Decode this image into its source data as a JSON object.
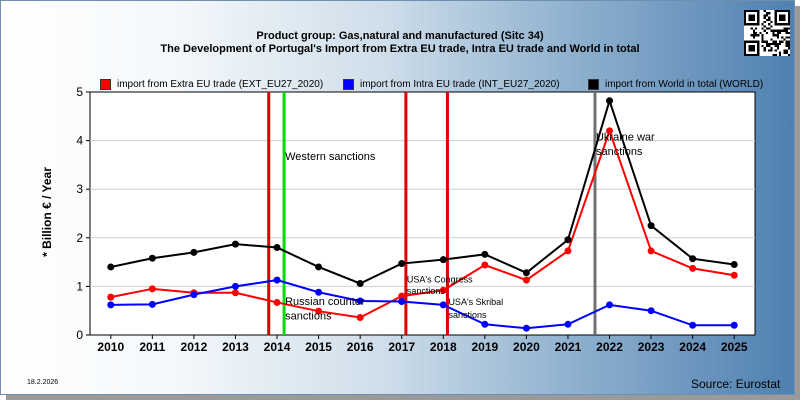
{
  "title_line1": "Product group: Gas,natural and manufactured (Sitc 34)",
  "title_line2": "The Development of Portugal's Import from Extra EU trade, Intra EU trade and World in total",
  "date": "18.2.2026",
  "source": "Source: Eurostat",
  "colors": {
    "extra": "#ff0000",
    "intra": "#0000ff",
    "world": "#000000"
  },
  "chart_data": {
    "type": "line",
    "ylabel": "* Billion € / Year",
    "ylim": [
      0,
      5
    ],
    "yticks": [
      "0",
      "1",
      "2",
      "3",
      "4",
      "5"
    ],
    "x": [
      "2010",
      "2011",
      "2012",
      "2013",
      "2014",
      "2015",
      "2016",
      "2017",
      "2018",
      "2019",
      "2020",
      "2021",
      "2022",
      "2023",
      "2024",
      "2025"
    ],
    "legend_position": "top",
    "series": [
      {
        "name": "import from Extra EU trade (EXT_EU27_2020)",
        "key": "extra",
        "values": [
          0.78,
          0.95,
          0.87,
          0.87,
          0.67,
          0.49,
          0.36,
          0.8,
          0.92,
          1.44,
          1.13,
          1.73,
          4.2,
          1.73,
          1.37,
          1.23
        ]
      },
      {
        "name": "import from Intra EU trade (INT_EU27_2020)",
        "key": "intra",
        "values": [
          0.62,
          0.63,
          0.83,
          1.0,
          1.13,
          0.88,
          0.7,
          0.69,
          0.62,
          0.22,
          0.14,
          0.22,
          0.62,
          0.5,
          0.2,
          0.2
        ]
      },
      {
        "name": "import from World in total (WORLD)",
        "key": "world",
        "values": [
          1.4,
          1.58,
          1.7,
          1.87,
          1.8,
          1.4,
          1.06,
          1.47,
          1.55,
          1.66,
          1.28,
          1.96,
          4.82,
          2.25,
          1.57,
          1.45
        ]
      }
    ],
    "annotations": [
      {
        "year": 2013.8,
        "color": "#e00000",
        "label": ""
      },
      {
        "year": 2014.17,
        "color": "#00dd00",
        "label": "Western sanctions",
        "label_y": 3.6
      },
      {
        "year": 2014.17,
        "color": "",
        "label": "Russian counter",
        "label_y": 0.62
      },
      {
        "year": 2014.17,
        "color": "",
        "label": "sanctions",
        "label_y": 0.32
      },
      {
        "year": 2017.1,
        "color": "#e00000",
        "label": "USA's Congress",
        "label_y": 1.08,
        "small": true
      },
      {
        "year": 2017.1,
        "color": "",
        "label": "sanctions",
        "label_y": 0.84,
        "small": true
      },
      {
        "year": 2018.1,
        "color": "#e00000",
        "label": "USA's Skribal",
        "label_y": 0.62,
        "small": true
      },
      {
        "year": 2018.1,
        "color": "",
        "label": "sanctions",
        "label_y": 0.35,
        "small": true
      },
      {
        "year": 2021.65,
        "color": "#707070",
        "label": "Ukraine war",
        "label_y": 4.0
      },
      {
        "year": 2021.65,
        "color": "",
        "label": "sanctions",
        "label_y": 3.7
      }
    ]
  }
}
